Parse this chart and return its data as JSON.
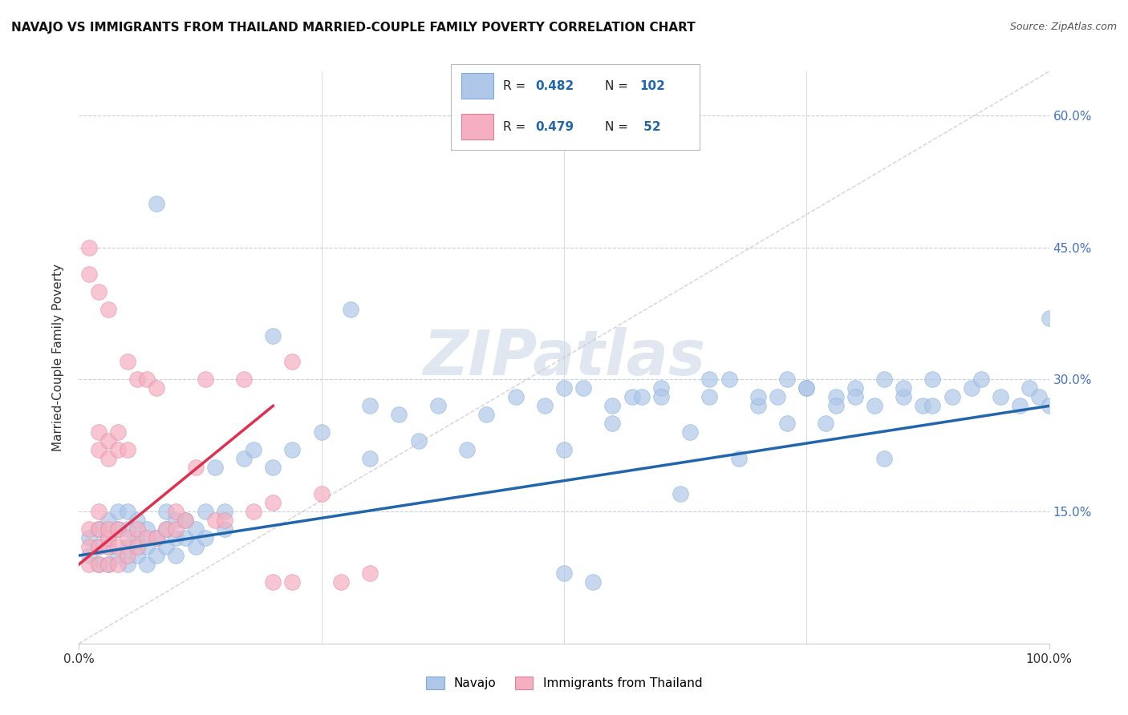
{
  "title": "NAVAJO VS IMMIGRANTS FROM THAILAND MARRIED-COUPLE FAMILY POVERTY CORRELATION CHART",
  "source": "Source: ZipAtlas.com",
  "ylabel": "Married-Couple Family Poverty",
  "xlim": [
    0,
    1.0
  ],
  "ylim": [
    0,
    0.65
  ],
  "xtick_vals": [
    0.0,
    1.0
  ],
  "xtick_labels": [
    "0.0%",
    "100.0%"
  ],
  "ytick_positions": [
    0.15,
    0.3,
    0.45,
    0.6
  ],
  "ytick_labels": [
    "15.0%",
    "30.0%",
    "45.0%",
    "60.0%"
  ],
  "legend_R_navajo": "0.482",
  "legend_N_navajo": "102",
  "legend_R_thailand": "0.479",
  "legend_N_thailand": "52",
  "navajo_color": "#aec6e8",
  "thailand_color": "#f5afc0",
  "navajo_line_color": "#2166ac",
  "thailand_line_color": "#e03050",
  "diagonal_color": "#c8c8c8",
  "watermark_color": "#ccd8e8",
  "background_color": "#ffffff",
  "grid_color": "#c8d0e0",
  "navajo_scatter_x": [
    0.01,
    0.01,
    0.02,
    0.02,
    0.02,
    0.03,
    0.03,
    0.03,
    0.03,
    0.04,
    0.04,
    0.04,
    0.05,
    0.05,
    0.05,
    0.05,
    0.06,
    0.06,
    0.06,
    0.07,
    0.07,
    0.07,
    0.08,
    0.08,
    0.08,
    0.09,
    0.09,
    0.09,
    0.1,
    0.1,
    0.1,
    0.11,
    0.11,
    0.12,
    0.12,
    0.13,
    0.13,
    0.14,
    0.15,
    0.15,
    0.17,
    0.18,
    0.2,
    0.2,
    0.22,
    0.25,
    0.28,
    0.3,
    0.3,
    0.33,
    0.35,
    0.37,
    0.4,
    0.42,
    0.45,
    0.48,
    0.5,
    0.5,
    0.52,
    0.53,
    0.55,
    0.57,
    0.58,
    0.6,
    0.62,
    0.63,
    0.65,
    0.67,
    0.68,
    0.7,
    0.72,
    0.73,
    0.75,
    0.77,
    0.78,
    0.8,
    0.82,
    0.83,
    0.85,
    0.87,
    0.88,
    0.9,
    0.92,
    0.93,
    0.95,
    0.97,
    0.98,
    0.99,
    1.0,
    1.0,
    0.5,
    0.55,
    0.6,
    0.65,
    0.7,
    0.73,
    0.75,
    0.78,
    0.8,
    0.83,
    0.85,
    0.88
  ],
  "navajo_scatter_y": [
    0.1,
    0.12,
    0.09,
    0.11,
    0.13,
    0.09,
    0.11,
    0.12,
    0.14,
    0.1,
    0.13,
    0.15,
    0.09,
    0.11,
    0.13,
    0.15,
    0.1,
    0.12,
    0.14,
    0.09,
    0.11,
    0.13,
    0.1,
    0.12,
    0.5,
    0.11,
    0.13,
    0.15,
    0.1,
    0.12,
    0.14,
    0.12,
    0.14,
    0.11,
    0.13,
    0.12,
    0.15,
    0.2,
    0.13,
    0.15,
    0.21,
    0.22,
    0.2,
    0.35,
    0.22,
    0.24,
    0.38,
    0.21,
    0.27,
    0.26,
    0.23,
    0.27,
    0.22,
    0.26,
    0.28,
    0.27,
    0.08,
    0.22,
    0.29,
    0.07,
    0.25,
    0.28,
    0.28,
    0.29,
    0.17,
    0.24,
    0.28,
    0.3,
    0.21,
    0.27,
    0.28,
    0.3,
    0.29,
    0.25,
    0.28,
    0.29,
    0.27,
    0.21,
    0.28,
    0.27,
    0.3,
    0.28,
    0.29,
    0.3,
    0.28,
    0.27,
    0.29,
    0.28,
    0.27,
    0.37,
    0.29,
    0.27,
    0.28,
    0.3,
    0.28,
    0.25,
    0.29,
    0.27,
    0.28,
    0.3,
    0.29,
    0.27
  ],
  "thailand_scatter_x": [
    0.01,
    0.01,
    0.01,
    0.01,
    0.01,
    0.02,
    0.02,
    0.02,
    0.02,
    0.02,
    0.02,
    0.02,
    0.03,
    0.03,
    0.03,
    0.03,
    0.03,
    0.03,
    0.03,
    0.04,
    0.04,
    0.04,
    0.04,
    0.04,
    0.05,
    0.05,
    0.05,
    0.05,
    0.06,
    0.06,
    0.06,
    0.07,
    0.07,
    0.08,
    0.08,
    0.09,
    0.1,
    0.1,
    0.11,
    0.12,
    0.13,
    0.14,
    0.15,
    0.17,
    0.18,
    0.2,
    0.2,
    0.22,
    0.22,
    0.25,
    0.27,
    0.3
  ],
  "thailand_scatter_y": [
    0.09,
    0.11,
    0.13,
    0.42,
    0.45,
    0.09,
    0.11,
    0.13,
    0.15,
    0.22,
    0.24,
    0.4,
    0.09,
    0.11,
    0.12,
    0.13,
    0.21,
    0.23,
    0.38,
    0.09,
    0.11,
    0.13,
    0.22,
    0.24,
    0.1,
    0.12,
    0.22,
    0.32,
    0.11,
    0.13,
    0.3,
    0.12,
    0.3,
    0.12,
    0.29,
    0.13,
    0.13,
    0.15,
    0.14,
    0.2,
    0.3,
    0.14,
    0.14,
    0.3,
    0.15,
    0.07,
    0.16,
    0.07,
    0.32,
    0.17,
    0.07,
    0.08
  ],
  "navajo_line_x0": 0.0,
  "navajo_line_y0": 0.1,
  "navajo_line_x1": 1.0,
  "navajo_line_y1": 0.27,
  "thailand_line_x0": 0.0,
  "thailand_line_y0": 0.09,
  "thailand_line_x1": 0.2,
  "thailand_line_y1": 0.27,
  "figsize": [
    14.06,
    8.92
  ],
  "dpi": 100
}
